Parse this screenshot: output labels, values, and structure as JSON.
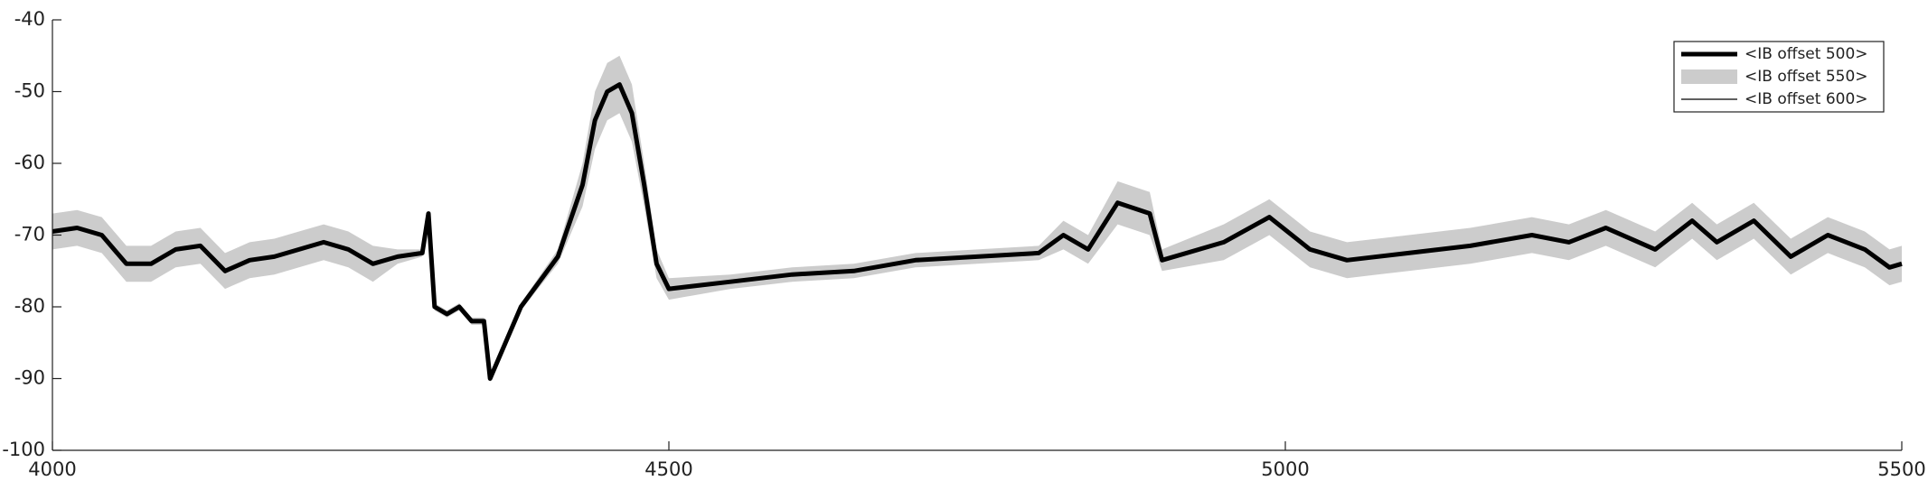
{
  "chart_data": {
    "type": "line",
    "x": [
      4000,
      4020,
      4040,
      4060,
      4080,
      4100,
      4120,
      4140,
      4160,
      4180,
      4200,
      4220,
      4240,
      4260,
      4280,
      4300,
      4305,
      4310,
      4320,
      4330,
      4340,
      4350,
      4355,
      4380,
      4410,
      4430,
      4440,
      4450,
      4460,
      4470,
      4480,
      4490,
      4500,
      4550,
      4600,
      4650,
      4700,
      4750,
      4800,
      4820,
      4840,
      4864,
      4890,
      4900,
      4950,
      4987,
      5020,
      5050,
      5100,
      5150,
      5200,
      5230,
      5260,
      5300,
      5330,
      5350,
      5380,
      5410,
      5440,
      5470,
      5490,
      5500
    ],
    "series": [
      {
        "name": "<IB offset 500>",
        "color": "#000000",
        "values": [
          -69.5,
          -69,
          -70,
          -74,
          -74,
          -72,
          -71.5,
          -75,
          -73.5,
          -73,
          -72,
          -71,
          -72,
          -74,
          -73,
          -72.5,
          -67,
          -80,
          -81,
          -80,
          -82,
          -82,
          -90,
          -80,
          -73,
          -63,
          -54,
          -50,
          -49,
          -53,
          -63,
          -74,
          -77.5,
          -76.5,
          -75.5,
          -75,
          -73.5,
          -73,
          -72.5,
          -70,
          -72,
          -65.5,
          -67,
          -73.5,
          -71,
          -67.5,
          -72,
          -73.5,
          -72.5,
          -71.5,
          -70,
          -71,
          -69,
          -72,
          -68,
          -71,
          -68,
          -73,
          -70,
          -72,
          -74.5,
          -74
        ]
      },
      {
        "name": "<IB offset 550>",
        "color": "#cccccc",
        "low": [
          -72,
          -71.5,
          -72.5,
          -76.5,
          -76.5,
          -74.5,
          -74,
          -77.5,
          -76,
          -75.5,
          -74.5,
          -73.5,
          -74.5,
          -76.5,
          -74,
          -73,
          -67.5,
          -80.5,
          -81.5,
          -80.5,
          -82.5,
          -82.5,
          -90.5,
          -80.5,
          -74,
          -66,
          -58,
          -54,
          -53,
          -57,
          -66,
          -76,
          -79,
          -77.5,
          -76.5,
          -76,
          -74.5,
          -74,
          -73.5,
          -72,
          -74,
          -68.5,
          -70,
          -75,
          -73.5,
          -70,
          -74.5,
          -76,
          -75,
          -74,
          -72.5,
          -73.5,
          -71.5,
          -74.5,
          -70.5,
          -73.5,
          -70.5,
          -75.5,
          -72.5,
          -74.5,
          -77,
          -76.5
        ],
        "high": [
          -67,
          -66.5,
          -67.5,
          -71.5,
          -71.5,
          -69.5,
          -69,
          -72.5,
          -71,
          -70.5,
          -69.5,
          -68.5,
          -69.5,
          -71.5,
          -72,
          -72,
          -66.5,
          -79.5,
          -80.5,
          -79.5,
          -81.5,
          -81.5,
          -89.5,
          -79.5,
          -72,
          -60,
          -50,
          -46,
          -45,
          -49,
          -60,
          -72,
          -76,
          -75.5,
          -74.5,
          -74,
          -72.5,
          -72,
          -71.5,
          -68,
          -70,
          -62.5,
          -64,
          -72,
          -68.5,
          -65,
          -69.5,
          -71,
          -70,
          -69,
          -67.5,
          -68.5,
          -66.5,
          -69.5,
          -65.5,
          -68.5,
          -65.5,
          -70.5,
          -67.5,
          -69.5,
          -72,
          -71.5
        ]
      },
      {
        "name": "<IB offset 600>",
        "color": "#000000",
        "values": [
          -69.5,
          -69,
          -70,
          -74,
          -74,
          -72,
          -71.5,
          -75,
          -73.5,
          -73,
          -72,
          -71,
          -72,
          -74,
          -73,
          -72.5,
          -67,
          -80,
          -81,
          -80,
          -82,
          -82,
          -90,
          -80,
          -73,
          -63,
          -54,
          -50,
          -49,
          -53,
          -63,
          -74,
          -77.5,
          -76.5,
          -75.5,
          -75,
          -73.5,
          -73,
          -72.5,
          -70,
          -72,
          -65.5,
          -67,
          -73.5,
          -71,
          -67.5,
          -72,
          -73.5,
          -72.5,
          -71.5,
          -70,
          -71,
          -69,
          -72,
          -68,
          -71,
          -68,
          -73,
          -70,
          -72,
          -74.5,
          -74
        ]
      }
    ],
    "xlim": [
      4000,
      5500
    ],
    "xticks": [
      4000,
      4500,
      5000,
      5500
    ],
    "ylim": [
      -100,
      -40
    ],
    "yticks": [
      -100,
      -90,
      -80,
      -70,
      -60,
      -50,
      -40
    ],
    "legend": "top-right"
  }
}
